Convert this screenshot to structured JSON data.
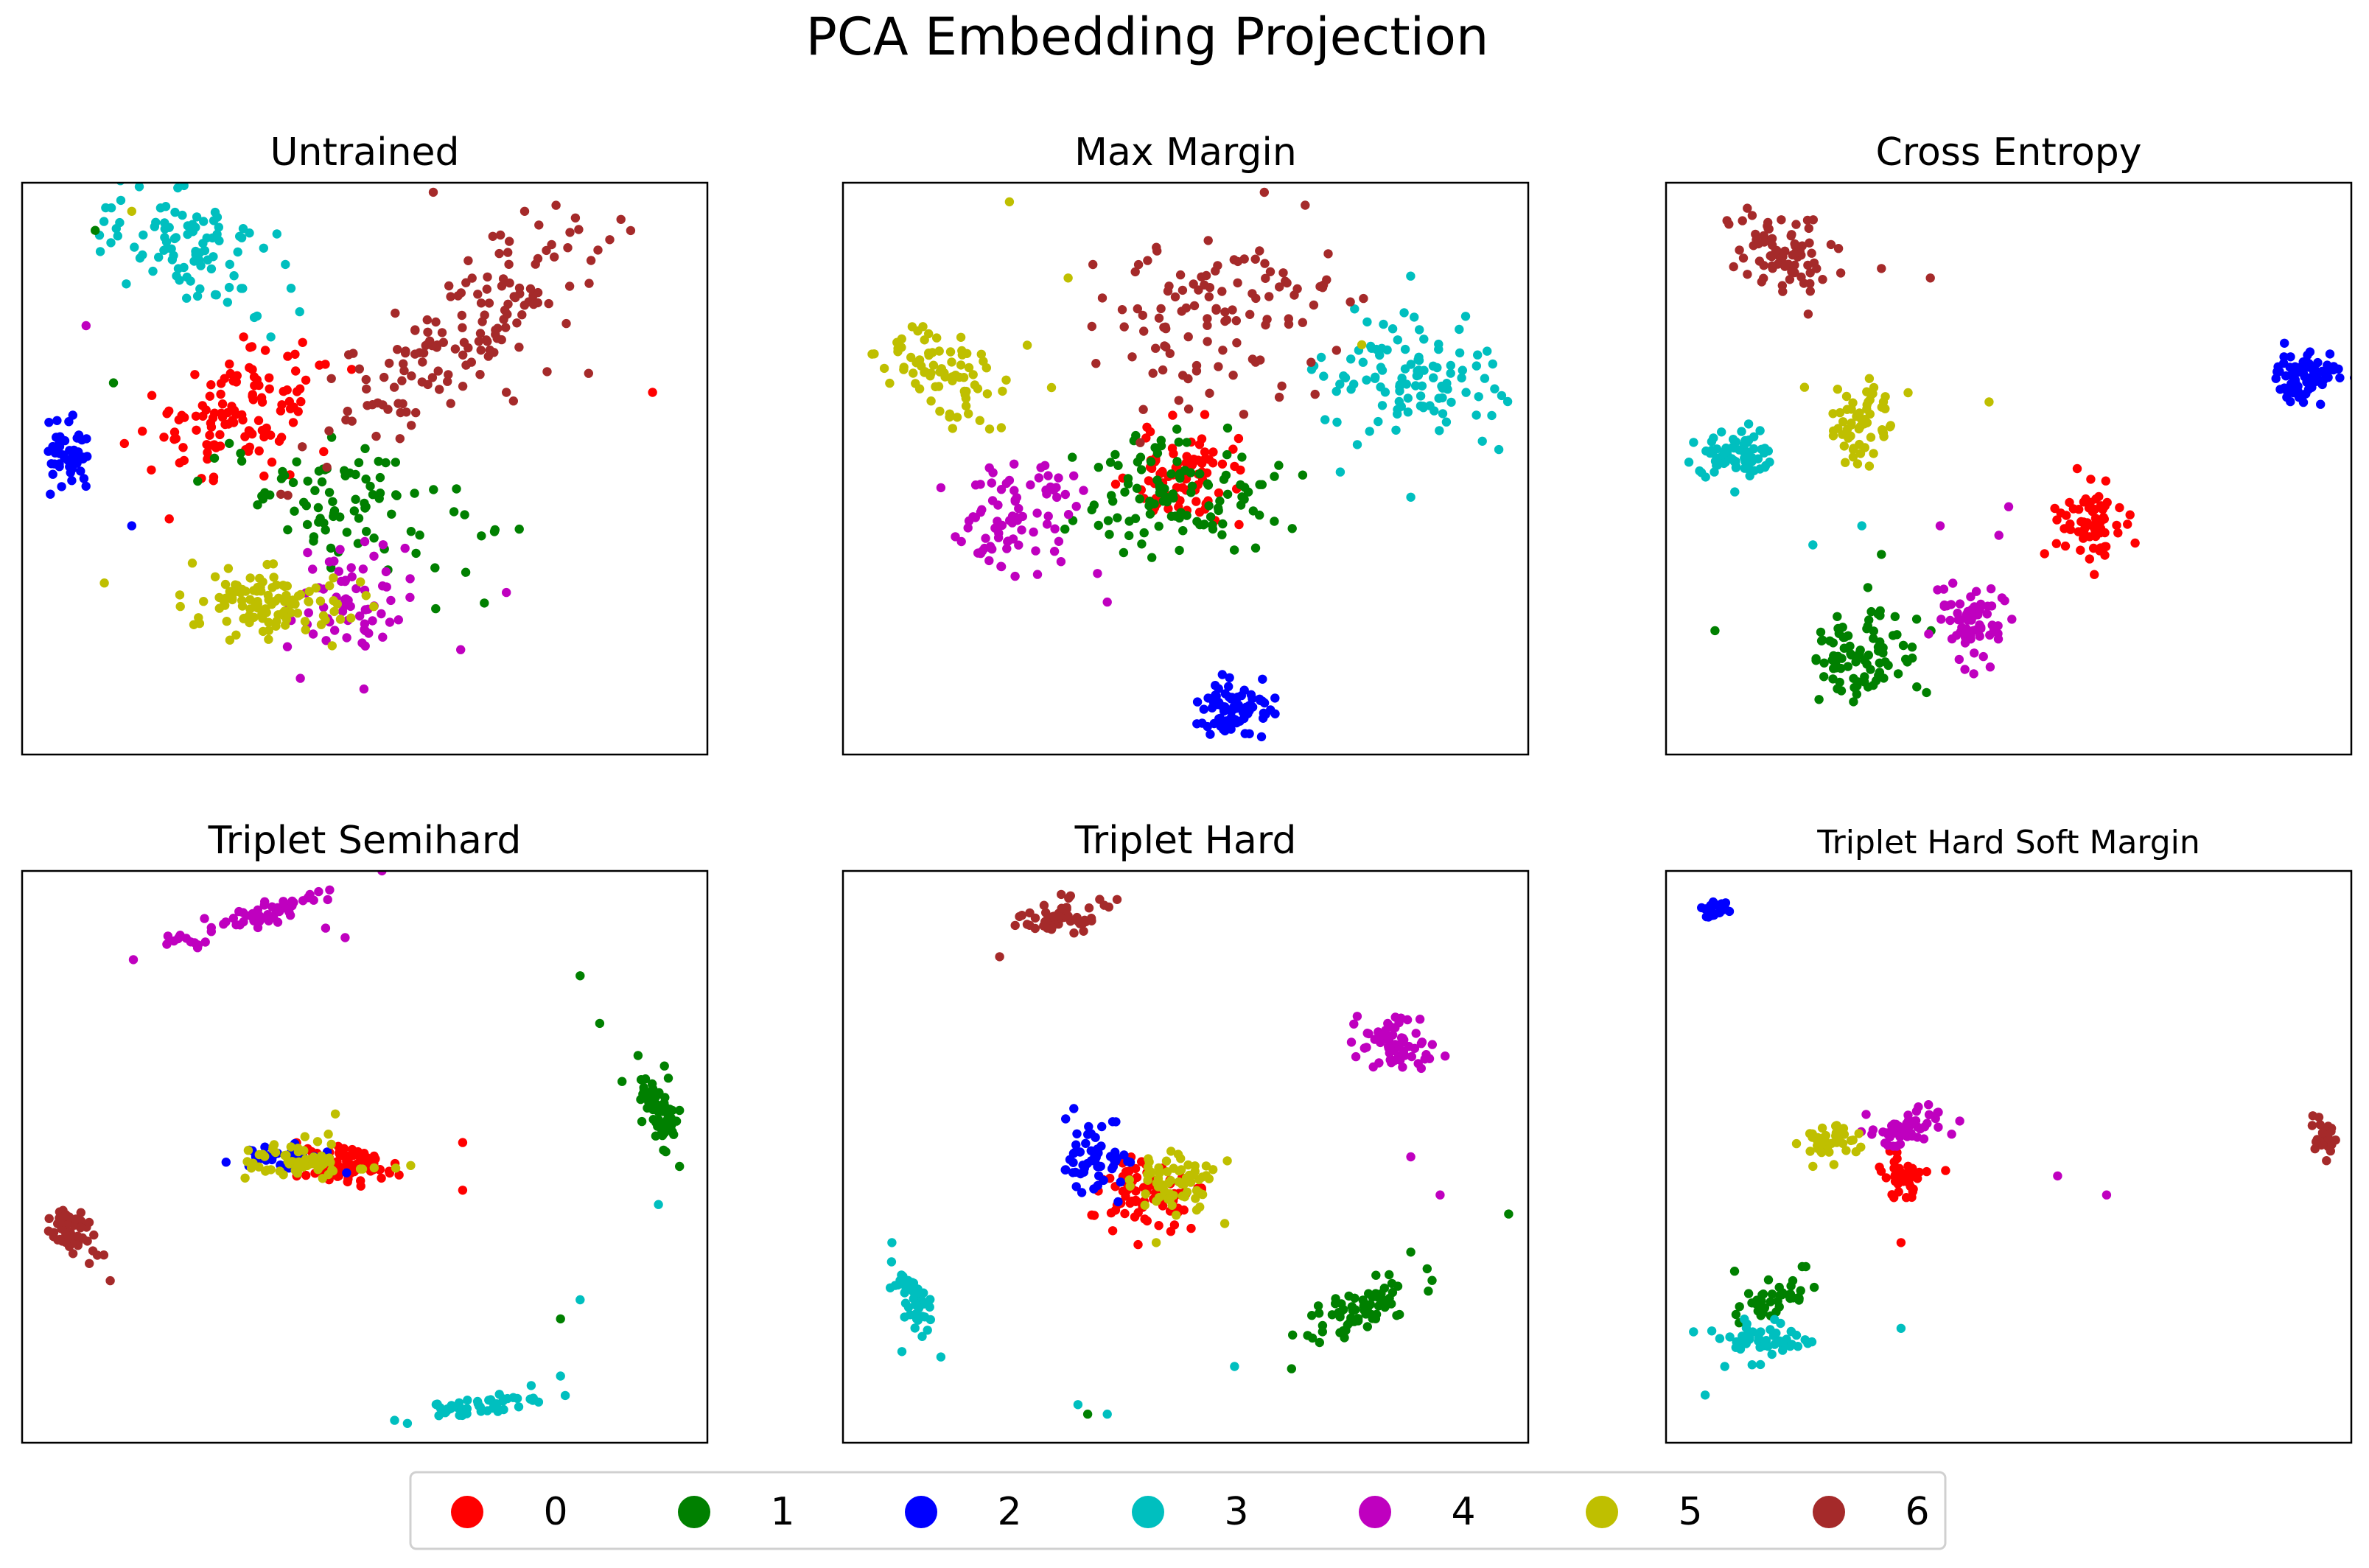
{
  "figure_title": "PCA Embedding Projection",
  "colors": [
    "#ff0000",
    "#008000",
    "#0000ff",
    "#00bfbf",
    "#bf00bf",
    "#bfbf00",
    "#a52a2a"
  ],
  "legend": {
    "labels": [
      "0",
      "1",
      "2",
      "3",
      "4",
      "5",
      "6"
    ]
  },
  "chart_data": [
    {
      "type": "scatter",
      "title": "Untrained",
      "xlim": [
        -3.5,
        4.0
      ],
      "ylim": [
        -3.0,
        3.0
      ],
      "grid": false,
      "clusters": [
        {
          "label": "0",
          "cx": -1.1,
          "cy": 0.6,
          "sx": 0.55,
          "sy": 0.3,
          "angle": 18,
          "n": 120
        },
        {
          "label": "1",
          "cx": 0.05,
          "cy": -0.4,
          "sx": 0.3,
          "sy": 0.6,
          "angle": 75,
          "n": 90
        },
        {
          "label": "2",
          "cx": -3.0,
          "cy": 0.1,
          "sx": 0.15,
          "sy": 0.18,
          "angle": 0,
          "n": 50
        },
        {
          "label": "3",
          "cx": -1.6,
          "cy": 2.3,
          "sx": 0.6,
          "sy": 0.25,
          "angle": -25,
          "n": 95
        },
        {
          "label": "4",
          "cx": 0.1,
          "cy": -1.4,
          "sx": 0.3,
          "sy": 0.35,
          "angle": 0,
          "n": 65
        },
        {
          "label": "5",
          "cx": -0.8,
          "cy": -1.4,
          "sx": 0.45,
          "sy": 0.18,
          "angle": -5,
          "n": 110
        },
        {
          "label": "6",
          "cx": 1.3,
          "cy": 1.4,
          "sx": 1.0,
          "sy": 0.3,
          "angle": 38,
          "n": 150
        }
      ],
      "outliers": [
        {
          "label": "0",
          "points": [
            [
              3.4,
              0.8
            ]
          ]
        },
        {
          "label": "1",
          "points": [
            [
              -2.7,
              2.5
            ],
            [
              -2.5,
              0.9
            ]
          ]
        },
        {
          "label": "2",
          "points": [
            [
              -2.3,
              -0.6
            ]
          ]
        },
        {
          "label": "4",
          "points": [
            [
              -2.8,
              1.5
            ],
            [
              1.8,
              -1.3
            ],
            [
              1.3,
              -1.9
            ]
          ]
        },
        {
          "label": "5",
          "points": [
            [
              -2.6,
              -1.2
            ],
            [
              -2.3,
              2.7
            ]
          ]
        },
        {
          "label": "6",
          "points": [
            [
              2.0,
              2.7
            ],
            [
              2.7,
              1.0
            ],
            [
              1.8,
              0.8
            ],
            [
              1.0,
              2.9
            ]
          ]
        }
      ]
    },
    {
      "type": "scatter",
      "title": "Max Margin",
      "xlim": [
        -3.5,
        3.5
      ],
      "ylim": [
        -3.0,
        3.0
      ],
      "grid": false,
      "clusters": [
        {
          "label": "0",
          "cx": 0.0,
          "cy": -0.1,
          "sx": 0.3,
          "sy": 0.25,
          "angle": 0,
          "n": 90
        },
        {
          "label": "1",
          "cx": 0.0,
          "cy": -0.3,
          "sx": 0.5,
          "sy": 0.35,
          "angle": 0,
          "n": 110
        },
        {
          "label": "2",
          "cx": 0.5,
          "cy": -2.5,
          "sx": 0.17,
          "sy": 0.15,
          "angle": 0,
          "n": 80
        },
        {
          "label": "3",
          "cx": 2.3,
          "cy": 0.9,
          "sx": 0.45,
          "sy": 0.35,
          "angle": 0,
          "n": 110
        },
        {
          "label": "4",
          "cx": -1.8,
          "cy": -0.5,
          "sx": 0.3,
          "sy": 0.35,
          "angle": -40,
          "n": 80
        },
        {
          "label": "5",
          "cx": -2.4,
          "cy": 1.0,
          "sx": 0.4,
          "sy": 0.2,
          "angle": -30,
          "n": 80
        },
        {
          "label": "6",
          "cx": 0.3,
          "cy": 1.6,
          "sx": 0.6,
          "sy": 0.4,
          "angle": 10,
          "n": 110
        }
      ],
      "outliers": [
        {
          "label": "3",
          "points": [
            [
              3.2,
              0.2
            ],
            [
              2.3,
              -0.3
            ]
          ]
        },
        {
          "label": "4",
          "points": [
            [
              -2.5,
              -0.2
            ],
            [
              -0.9,
              -1.1
            ],
            [
              -0.8,
              -1.4
            ]
          ]
        },
        {
          "label": "5",
          "points": [
            [
              -1.8,
              2.8
            ],
            [
              -1.2,
              2.0
            ],
            [
              1.8,
              1.3
            ]
          ]
        },
        {
          "label": "6",
          "points": [
            [
              0.6,
              2.2
            ],
            [
              1.4,
              1.9
            ]
          ]
        }
      ]
    },
    {
      "type": "scatter",
      "title": "Cross Entropy",
      "xlim": [
        -3.5,
        3.5
      ],
      "ylim": [
        -3.0,
        3.0
      ],
      "grid": false,
      "clusters": [
        {
          "label": "0",
          "cx": 0.8,
          "cy": -0.6,
          "sx": 0.17,
          "sy": 0.18,
          "angle": 0,
          "n": 70
        },
        {
          "label": "1",
          "cx": -1.5,
          "cy": -2.0,
          "sx": 0.25,
          "sy": 0.25,
          "angle": 0,
          "n": 90
        },
        {
          "label": "2",
          "cx": 3.0,
          "cy": 1.0,
          "sx": 0.18,
          "sy": 0.15,
          "angle": 0,
          "n": 80
        },
        {
          "label": "3",
          "cx": -2.8,
          "cy": 0.1,
          "sx": 0.2,
          "sy": 0.15,
          "angle": 0,
          "n": 75
        },
        {
          "label": "4",
          "cx": -0.4,
          "cy": -1.6,
          "sx": 0.2,
          "sy": 0.25,
          "angle": 0,
          "n": 70
        },
        {
          "label": "5",
          "cx": -1.5,
          "cy": 0.5,
          "sx": 0.18,
          "sy": 0.2,
          "angle": 0,
          "n": 60
        },
        {
          "label": "6",
          "cx": -2.3,
          "cy": 2.3,
          "sx": 0.3,
          "sy": 0.2,
          "angle": -35,
          "n": 80
        }
      ],
      "outliers": [
        {
          "label": "0",
          "points": [
            [
              0.7,
              0.0
            ]
          ]
        },
        {
          "label": "1",
          "points": [
            [
              -3.0,
              -1.7
            ],
            [
              -1.3,
              -0.9
            ]
          ]
        },
        {
          "label": "3",
          "points": [
            [
              -2.0,
              -0.8
            ],
            [
              -1.5,
              -0.6
            ]
          ]
        },
        {
          "label": "4",
          "points": [
            [
              -0.7,
              -0.6
            ],
            [
              -0.1,
              -0.7
            ],
            [
              0.0,
              -0.4
            ]
          ]
        },
        {
          "label": "5",
          "points": [
            [
              -0.2,
              0.7
            ]
          ]
        },
        {
          "label": "6",
          "points": [
            [
              -1.3,
              2.1
            ],
            [
              -0.8,
              2.0
            ]
          ]
        }
      ]
    },
    {
      "type": "scatter",
      "title": "Triplet Semihard",
      "xlim": [
        -3.5,
        3.5
      ],
      "ylim": [
        -3.0,
        3.0
      ],
      "grid": false,
      "clusters": [
        {
          "label": "0",
          "cx": -0.2,
          "cy": -0.1,
          "sx": 0.25,
          "sy": 0.1,
          "angle": 0,
          "n": 90
        },
        {
          "label": "1",
          "cx": 3.0,
          "cy": 0.5,
          "sx": 0.22,
          "sy": 0.08,
          "angle": -70,
          "n": 70
        },
        {
          "label": "2",
          "cx": -0.8,
          "cy": 0.0,
          "sx": 0.25,
          "sy": 0.07,
          "angle": 0,
          "n": 40
        },
        {
          "label": "3",
          "cx": 1.2,
          "cy": -2.6,
          "sx": 0.35,
          "sy": 0.05,
          "angle": 10,
          "n": 50
        },
        {
          "label": "4",
          "cx": -1.2,
          "cy": 2.5,
          "sx": 0.5,
          "sy": 0.06,
          "angle": 18,
          "n": 60
        },
        {
          "label": "5",
          "cx": -0.6,
          "cy": -0.05,
          "sx": 0.3,
          "sy": 0.1,
          "angle": 0,
          "n": 70
        },
        {
          "label": "6",
          "cx": -3.0,
          "cy": -0.8,
          "sx": 0.15,
          "sy": 0.1,
          "angle": -55,
          "n": 50
        }
      ],
      "outliers": [
        {
          "label": "0",
          "points": [
            [
              1.0,
              0.15
            ],
            [
              1.0,
              -0.35
            ]
          ]
        },
        {
          "label": "1",
          "points": [
            [
              2.2,
              1.9
            ],
            [
              2.4,
              1.4
            ],
            [
              2.0,
              -1.7
            ]
          ]
        },
        {
          "label": "3",
          "points": [
            [
              3.0,
              -0.5
            ],
            [
              2.2,
              -1.5
            ],
            [
              2.0,
              -2.3
            ],
            [
              1.7,
              -2.4
            ]
          ]
        },
        {
          "label": "4",
          "points": [
            [
              -0.4,
              2.4
            ],
            [
              -0.2,
              2.3
            ],
            [
              -1.9,
              2.3
            ]
          ]
        },
        {
          "label": "5",
          "points": [
            [
              -1.2,
              -0.05
            ],
            [
              -0.3,
              0.45
            ]
          ]
        },
        {
          "label": "6",
          "points": [
            [
              -2.6,
              -1.3
            ]
          ]
        }
      ]
    },
    {
      "type": "scatter",
      "title": "Triplet Hard",
      "xlim": [
        -3.5,
        3.5
      ],
      "ylim": [
        -3.0,
        3.0
      ],
      "grid": false,
      "clusters": [
        {
          "label": "0",
          "cx": -0.4,
          "cy": -0.4,
          "sx": 0.25,
          "sy": 0.2,
          "angle": 0,
          "n": 80
        },
        {
          "label": "1",
          "cx": 1.8,
          "cy": -1.6,
          "sx": 0.35,
          "sy": 0.12,
          "angle": 30,
          "n": 70
        },
        {
          "label": "2",
          "cx": -0.9,
          "cy": 0.0,
          "sx": 0.18,
          "sy": 0.2,
          "angle": 0,
          "n": 55
        },
        {
          "label": "3",
          "cx": -2.8,
          "cy": -1.5,
          "sx": 0.22,
          "sy": 0.08,
          "angle": -60,
          "n": 45
        },
        {
          "label": "4",
          "cx": 2.1,
          "cy": 1.2,
          "sx": 0.25,
          "sy": 0.15,
          "angle": -25,
          "n": 60
        },
        {
          "label": "5",
          "cx": -0.1,
          "cy": -0.25,
          "sx": 0.2,
          "sy": 0.2,
          "angle": 0,
          "n": 65
        },
        {
          "label": "6",
          "cx": -1.3,
          "cy": 2.5,
          "sx": 0.25,
          "sy": 0.1,
          "angle": 10,
          "n": 50
        }
      ],
      "outliers": [
        {
          "label": "1",
          "points": [
            [
              3.3,
              -0.6
            ],
            [
              2.3,
              -1.0
            ],
            [
              -1.0,
              -2.7
            ]
          ]
        },
        {
          "label": "3",
          "points": [
            [
              -3.0,
              -0.9
            ],
            [
              -2.5,
              -2.1
            ],
            [
              -1.1,
              -2.6
            ],
            [
              -0.8,
              -2.7
            ],
            [
              0.5,
              -2.2
            ]
          ]
        },
        {
          "label": "4",
          "points": [
            [
              2.3,
              0.0
            ],
            [
              2.6,
              -0.4
            ]
          ]
        },
        {
          "label": "5",
          "points": [
            [
              -0.3,
              -0.9
            ],
            [
              0.4,
              -0.7
            ]
          ]
        },
        {
          "label": "6",
          "points": [
            [
              -0.7,
              2.7
            ],
            [
              -1.9,
              2.1
            ]
          ]
        }
      ]
    },
    {
      "type": "scatter",
      "title": "Triplet Hard Soft Margin",
      "xlim": [
        -3.5,
        3.5
      ],
      "ylim": [
        -3.0,
        3.0
      ],
      "grid": false,
      "clusters": [
        {
          "label": "0",
          "cx": -1.1,
          "cy": -0.2,
          "sx": 0.12,
          "sy": 0.1,
          "angle": 0,
          "n": 40
        },
        {
          "label": "1",
          "cx": -2.4,
          "cy": -1.5,
          "sx": 0.25,
          "sy": 0.08,
          "angle": 30,
          "n": 45
        },
        {
          "label": "2",
          "cx": -3.0,
          "cy": 2.6,
          "sx": 0.08,
          "sy": 0.05,
          "angle": 0,
          "n": 25
        },
        {
          "label": "3",
          "cx": -2.5,
          "cy": -1.9,
          "sx": 0.22,
          "sy": 0.1,
          "angle": 0,
          "n": 55
        },
        {
          "label": "4",
          "cx": -1.1,
          "cy": 0.3,
          "sx": 0.25,
          "sy": 0.1,
          "angle": 12,
          "n": 55
        },
        {
          "label": "5",
          "cx": -1.8,
          "cy": 0.2,
          "sx": 0.18,
          "sy": 0.08,
          "angle": 10,
          "n": 40
        },
        {
          "label": "6",
          "cx": 3.2,
          "cy": 0.2,
          "sx": 0.1,
          "sy": 0.06,
          "angle": -70,
          "n": 30
        }
      ],
      "outliers": [
        {
          "label": "0",
          "points": [
            [
              -1.1,
              -0.9
            ]
          ]
        },
        {
          "label": "1",
          "points": [
            [
              -2.8,
              -1.2
            ]
          ]
        },
        {
          "label": "3",
          "points": [
            [
              -3.1,
              -2.5
            ],
            [
              -2.9,
              -2.2
            ],
            [
              -1.1,
              -1.8
            ]
          ]
        },
        {
          "label": "4",
          "points": [
            [
              0.5,
              -0.2
            ],
            [
              1.0,
              -0.4
            ]
          ]
        },
        {
          "label": "5",
          "points": [
            [
              -2.0,
              -0.1
            ]
          ]
        }
      ]
    }
  ]
}
